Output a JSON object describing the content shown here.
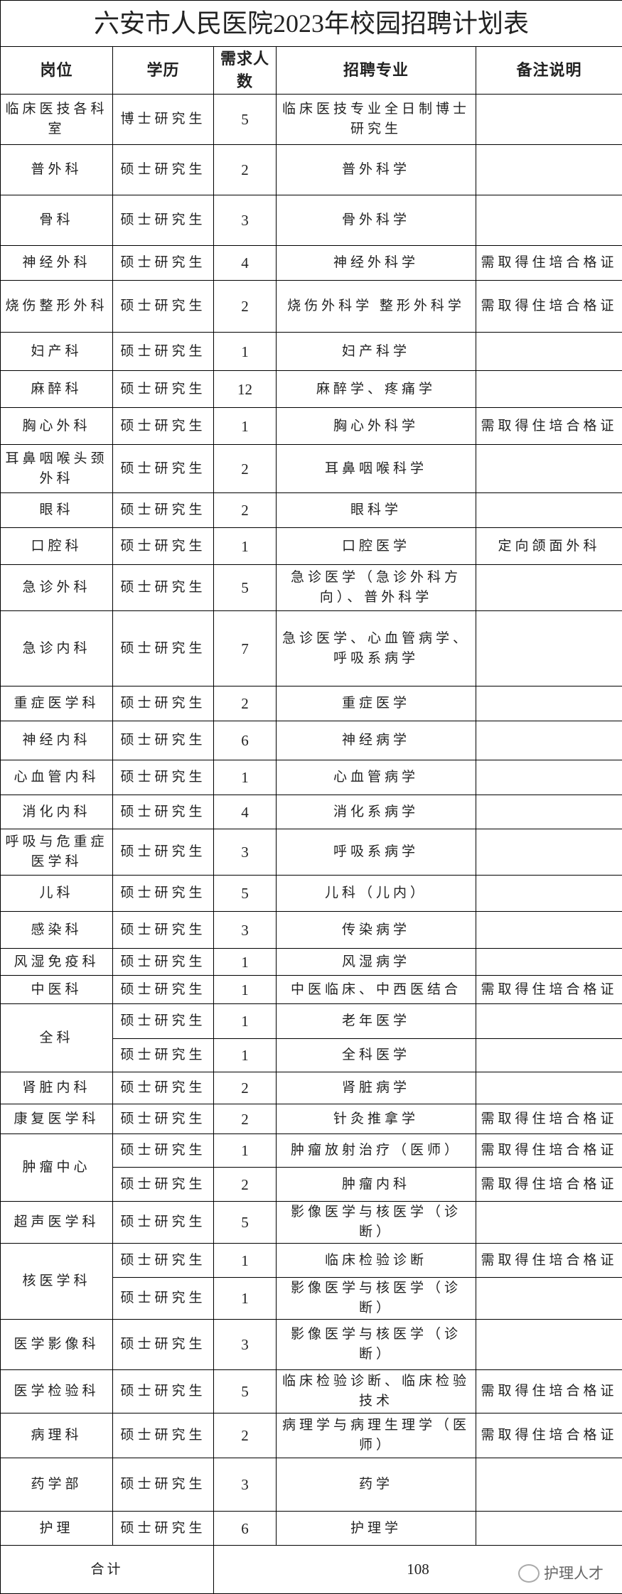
{
  "title": "六安市人民医院2023年校园招聘计划表",
  "headers": [
    "岗位",
    "学历",
    "需求人数",
    "招聘专业",
    "备注说明"
  ],
  "groups": [
    {
      "post": "临床医技各科室",
      "rows": [
        {
          "edu": "博士研究生",
          "num": "5",
          "major": "临床医技专业全日制博士研究生",
          "note": ""
        }
      ]
    },
    {
      "post": "普外科",
      "rows": [
        {
          "edu": "硕士研究生",
          "num": "2",
          "major": "普外科学",
          "note": ""
        }
      ]
    },
    {
      "post": "骨科",
      "rows": [
        {
          "edu": "硕士研究生",
          "num": "3",
          "major": "骨外科学",
          "note": ""
        }
      ]
    },
    {
      "post": "神经外科",
      "rows": [
        {
          "edu": "硕士研究生",
          "num": "4",
          "major": "神经外科学",
          "note": "需取得住培合格证"
        }
      ]
    },
    {
      "post": "烧伤整形外科",
      "rows": [
        {
          "edu": "硕士研究生",
          "num": "2",
          "major": "烧伤外科学 整形外科学",
          "note": "需取得住培合格证"
        }
      ]
    },
    {
      "post": "妇产科",
      "rows": [
        {
          "edu": "硕士研究生",
          "num": "1",
          "major": "妇产科学",
          "note": ""
        }
      ]
    },
    {
      "post": "麻醉科",
      "rows": [
        {
          "edu": "硕士研究生",
          "num": "12",
          "major": "麻醉学、疼痛学",
          "note": ""
        }
      ]
    },
    {
      "post": "胸心外科",
      "rows": [
        {
          "edu": "硕士研究生",
          "num": "1",
          "major": "胸心外科学",
          "note": "需取得住培合格证"
        }
      ]
    },
    {
      "post": "耳鼻咽喉头颈外科",
      "rows": [
        {
          "edu": "硕士研究生",
          "num": "2",
          "major": "耳鼻咽喉科学",
          "note": ""
        }
      ]
    },
    {
      "post": "眼科",
      "rows": [
        {
          "edu": "硕士研究生",
          "num": "2",
          "major": "眼科学",
          "note": ""
        }
      ]
    },
    {
      "post": "口腔科",
      "rows": [
        {
          "edu": "硕士研究生",
          "num": "1",
          "major": "口腔医学",
          "note": "定向颌面外科"
        }
      ]
    },
    {
      "post": "急诊外科",
      "rows": [
        {
          "edu": "硕士研究生",
          "num": "5",
          "major": "急诊医学（急诊外科方向）、普外科学",
          "note": ""
        }
      ]
    },
    {
      "post": "急诊内科",
      "rows": [
        {
          "edu": "硕士研究生",
          "num": "7",
          "major": "急诊医学、心血管病学、呼吸系病学",
          "note": ""
        }
      ]
    },
    {
      "post": "重症医学科",
      "rows": [
        {
          "edu": "硕士研究生",
          "num": "2",
          "major": "重症医学",
          "note": ""
        }
      ]
    },
    {
      "post": "神经内科",
      "rows": [
        {
          "edu": "硕士研究生",
          "num": "6",
          "major": "神经病学",
          "note": ""
        }
      ]
    },
    {
      "post": "心血管内科",
      "rows": [
        {
          "edu": "硕士研究生",
          "num": "1",
          "major": "心血管病学",
          "note": ""
        }
      ]
    },
    {
      "post": "消化内科",
      "rows": [
        {
          "edu": "硕士研究生",
          "num": "4",
          "major": "消化系病学",
          "note": ""
        }
      ]
    },
    {
      "post": "呼吸与危重症医学科",
      "rows": [
        {
          "edu": "硕士研究生",
          "num": "3",
          "major": "呼吸系病学",
          "note": ""
        }
      ]
    },
    {
      "post": "儿科",
      "rows": [
        {
          "edu": "硕士研究生",
          "num": "5",
          "major": "儿科（儿内）",
          "note": ""
        }
      ]
    },
    {
      "post": "感染科",
      "rows": [
        {
          "edu": "硕士研究生",
          "num": "3",
          "major": "传染病学",
          "note": ""
        }
      ]
    },
    {
      "post": "风湿免疫科",
      "rows": [
        {
          "edu": "硕士研究生",
          "num": "1",
          "major": "风湿病学",
          "note": ""
        }
      ]
    },
    {
      "post": "中医科",
      "rows": [
        {
          "edu": "硕士研究生",
          "num": "1",
          "major": "中医临床、中西医结合",
          "note": "需取得住培合格证"
        }
      ]
    },
    {
      "post": "全科",
      "rows": [
        {
          "edu": "硕士研究生",
          "num": "1",
          "major": "老年医学",
          "note": ""
        },
        {
          "edu": "硕士研究生",
          "num": "1",
          "major": "全科医学",
          "note": ""
        }
      ]
    },
    {
      "post": "肾脏内科",
      "rows": [
        {
          "edu": "硕士研究生",
          "num": "2",
          "major": "肾脏病学",
          "note": ""
        }
      ]
    },
    {
      "post": "康复医学科",
      "rows": [
        {
          "edu": "硕士研究生",
          "num": "2",
          "major": "针灸推拿学",
          "note": "需取得住培合格证"
        }
      ]
    },
    {
      "post": "肿瘤中心",
      "rows": [
        {
          "edu": "硕士研究生",
          "num": "1",
          "major": "肿瘤放射治疗（医师）",
          "note": "需取得住培合格证"
        },
        {
          "edu": "硕士研究生",
          "num": "2",
          "major": "肿瘤内科",
          "note": "需取得住培合格证"
        }
      ]
    },
    {
      "post": "超声医学科",
      "rows": [
        {
          "edu": "硕士研究生",
          "num": "5",
          "major": "影像医学与核医学（诊断）",
          "note": ""
        }
      ]
    },
    {
      "post": "核医学科",
      "rows": [
        {
          "edu": "硕士研究生",
          "num": "1",
          "major": "临床检验诊断",
          "note": "需取得住培合格证"
        },
        {
          "edu": "硕士研究生",
          "num": "1",
          "major": "影像医学与核医学（诊断）",
          "note": ""
        }
      ]
    },
    {
      "post": "医学影像科",
      "rows": [
        {
          "edu": "硕士研究生",
          "num": "3",
          "major": "影像医学与核医学（诊断）",
          "note": ""
        }
      ]
    },
    {
      "post": "医学检验科",
      "rows": [
        {
          "edu": "硕士研究生",
          "num": "5",
          "major": "临床检验诊断、临床检验技术",
          "note": "需取得住培合格证"
        }
      ]
    },
    {
      "post": "病理科",
      "rows": [
        {
          "edu": "硕士研究生",
          "num": "2",
          "major": "病理学与病理生理学（医师）",
          "note": "需取得住培合格证"
        }
      ]
    },
    {
      "post": "药学部",
      "rows": [
        {
          "edu": "硕士研究生",
          "num": "3",
          "major": "药学",
          "note": ""
        }
      ]
    },
    {
      "post": "护理",
      "rows": [
        {
          "edu": "硕士研究生",
          "num": "6",
          "major": "护理学",
          "note": ""
        }
      ]
    }
  ],
  "total": {
    "label": "合计",
    "value": "108"
  },
  "watermark": {
    "icon": "wechat-icon",
    "text": "护理人才"
  }
}
